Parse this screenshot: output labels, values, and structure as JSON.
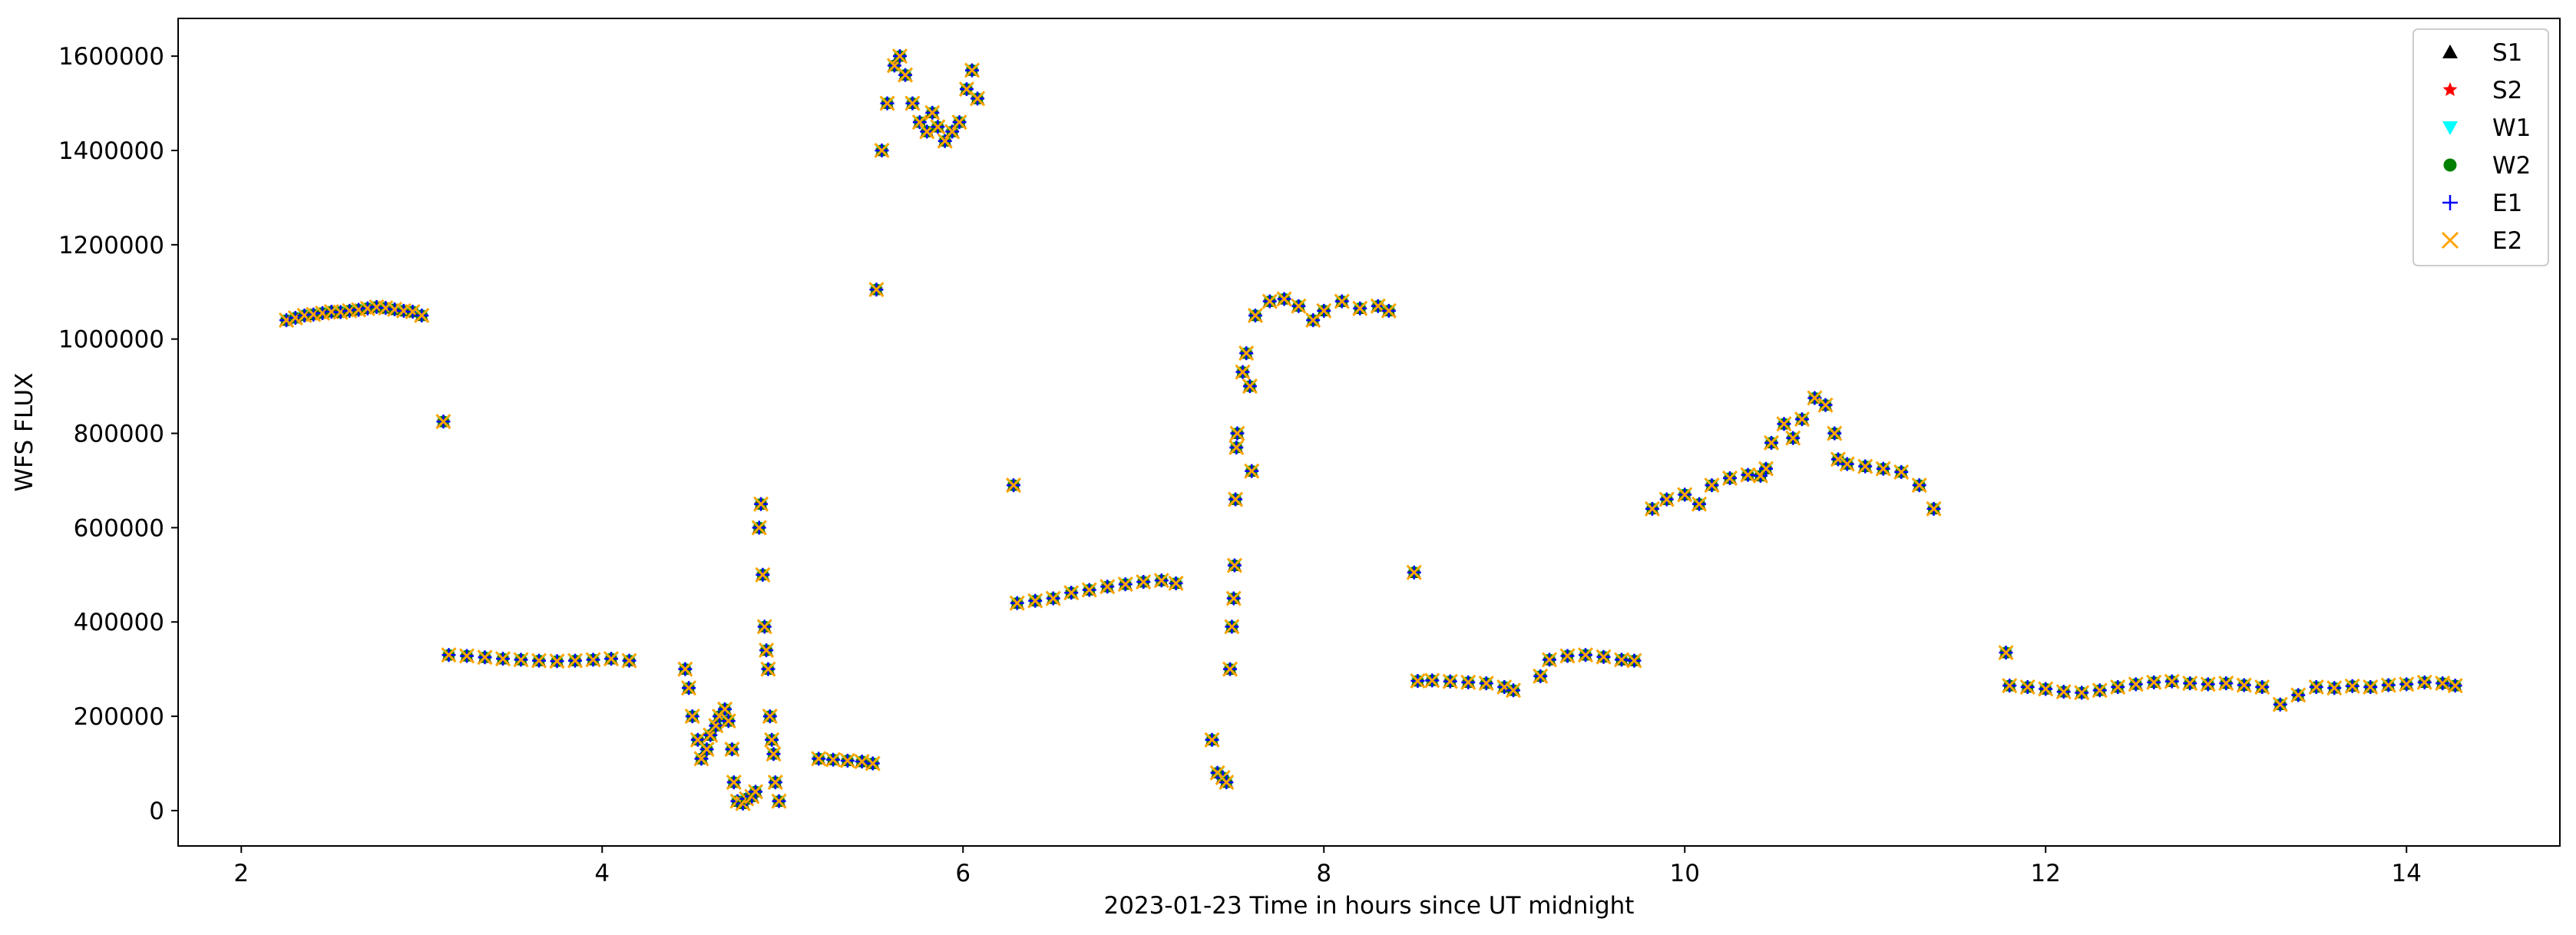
{
  "chart_data": {
    "type": "scatter",
    "title": "",
    "xlabel": "2023-01-23  Time in hours since UT midnight",
    "ylabel": "WFS FLUX",
    "xlim": [
      1.65,
      14.85
    ],
    "ylim": [
      -75000,
      1680000
    ],
    "xticks": [
      2,
      4,
      6,
      8,
      10,
      12,
      14
    ],
    "yticks": [
      0,
      200000,
      400000,
      600000,
      800000,
      1000000,
      1200000,
      1400000,
      1600000
    ],
    "grid": false,
    "legend_position": "top-right",
    "series": [
      {
        "name": "S1",
        "color": "#000000",
        "marker": "triangle-up",
        "symbol": "▲"
      },
      {
        "name": "S2",
        "color": "#ff0000",
        "marker": "star",
        "symbol": "★"
      },
      {
        "name": "W1",
        "color": "#00ffff",
        "marker": "triangle-down",
        "symbol": "▼"
      },
      {
        "name": "W2",
        "color": "#008000",
        "marker": "circle",
        "symbol": "●"
      },
      {
        "name": "E1",
        "color": "#0000ff",
        "marker": "plus",
        "symbol": "+"
      },
      {
        "name": "E2",
        "color": "#ffa500",
        "marker": "x",
        "symbol": "×"
      }
    ],
    "note_series_overlap": "All six series overlap almost exactly; points below are shared by every series.",
    "points": [
      [
        2.25,
        1040000
      ],
      [
        2.3,
        1045000
      ],
      [
        2.35,
        1050000
      ],
      [
        2.4,
        1052000
      ],
      [
        2.45,
        1055000
      ],
      [
        2.5,
        1058000
      ],
      [
        2.55,
        1057000
      ],
      [
        2.6,
        1060000
      ],
      [
        2.65,
        1062000
      ],
      [
        2.7,
        1065000
      ],
      [
        2.75,
        1068000
      ],
      [
        2.8,
        1066000
      ],
      [
        2.85,
        1063000
      ],
      [
        2.9,
        1060000
      ],
      [
        2.95,
        1058000
      ],
      [
        3.0,
        1050000
      ],
      [
        3.12,
        825000
      ],
      [
        3.15,
        330000
      ],
      [
        3.25,
        328000
      ],
      [
        3.35,
        325000
      ],
      [
        3.45,
        322000
      ],
      [
        3.55,
        320000
      ],
      [
        3.65,
        318000
      ],
      [
        3.75,
        317000
      ],
      [
        3.85,
        318000
      ],
      [
        3.95,
        320000
      ],
      [
        4.05,
        322000
      ],
      [
        4.15,
        318000
      ],
      [
        4.46,
        300000
      ],
      [
        4.48,
        260000
      ],
      [
        4.5,
        200000
      ],
      [
        4.53,
        150000
      ],
      [
        4.55,
        110000
      ],
      [
        4.58,
        130000
      ],
      [
        4.6,
        160000
      ],
      [
        4.63,
        180000
      ],
      [
        4.65,
        200000
      ],
      [
        4.68,
        215000
      ],
      [
        4.7,
        190000
      ],
      [
        4.72,
        130000
      ],
      [
        4.73,
        60000
      ],
      [
        4.75,
        20000
      ],
      [
        4.78,
        15000
      ],
      [
        4.8,
        25000
      ],
      [
        4.83,
        30000
      ],
      [
        4.85,
        40000
      ],
      [
        4.87,
        600000
      ],
      [
        4.88,
        650000
      ],
      [
        4.89,
        500000
      ],
      [
        4.9,
        390000
      ],
      [
        4.91,
        340000
      ],
      [
        4.92,
        300000
      ],
      [
        4.93,
        200000
      ],
      [
        4.94,
        150000
      ],
      [
        4.95,
        120000
      ],
      [
        4.96,
        60000
      ],
      [
        4.98,
        20000
      ],
      [
        5.2,
        110000
      ],
      [
        5.28,
        108000
      ],
      [
        5.36,
        106000
      ],
      [
        5.44,
        104000
      ],
      [
        5.5,
        100000
      ],
      [
        5.52,
        1105000
      ],
      [
        5.55,
        1400000
      ],
      [
        5.58,
        1500000
      ],
      [
        5.62,
        1580000
      ],
      [
        5.65,
        1600000
      ],
      [
        5.68,
        1560000
      ],
      [
        5.72,
        1500000
      ],
      [
        5.76,
        1460000
      ],
      [
        5.8,
        1440000
      ],
      [
        5.83,
        1480000
      ],
      [
        5.86,
        1450000
      ],
      [
        5.9,
        1420000
      ],
      [
        5.94,
        1440000
      ],
      [
        5.98,
        1460000
      ],
      [
        6.02,
        1530000
      ],
      [
        6.05,
        1570000
      ],
      [
        6.08,
        1510000
      ],
      [
        6.28,
        690000
      ],
      [
        6.3,
        440000
      ],
      [
        6.4,
        445000
      ],
      [
        6.5,
        450000
      ],
      [
        6.6,
        462000
      ],
      [
        6.7,
        468000
      ],
      [
        6.8,
        475000
      ],
      [
        6.9,
        480000
      ],
      [
        7.0,
        485000
      ],
      [
        7.1,
        488000
      ],
      [
        7.18,
        482000
      ],
      [
        7.38,
        150000
      ],
      [
        7.41,
        80000
      ],
      [
        7.44,
        70000
      ],
      [
        7.46,
        60000
      ],
      [
        7.48,
        300000
      ],
      [
        7.49,
        390000
      ],
      [
        7.5,
        450000
      ],
      [
        7.505,
        520000
      ],
      [
        7.51,
        660000
      ],
      [
        7.515,
        770000
      ],
      [
        7.52,
        800000
      ],
      [
        7.55,
        930000
      ],
      [
        7.57,
        970000
      ],
      [
        7.59,
        900000
      ],
      [
        7.6,
        720000
      ],
      [
        7.62,
        1050000
      ],
      [
        7.7,
        1080000
      ],
      [
        7.78,
        1085000
      ],
      [
        7.86,
        1070000
      ],
      [
        7.94,
        1040000
      ],
      [
        8.0,
        1060000
      ],
      [
        8.1,
        1080000
      ],
      [
        8.2,
        1065000
      ],
      [
        8.3,
        1070000
      ],
      [
        8.36,
        1060000
      ],
      [
        8.5,
        505000
      ],
      [
        8.52,
        275000
      ],
      [
        8.6,
        276000
      ],
      [
        8.7,
        274000
      ],
      [
        8.8,
        272000
      ],
      [
        8.9,
        270000
      ],
      [
        9.0,
        262000
      ],
      [
        9.05,
        255000
      ],
      [
        9.2,
        285000
      ],
      [
        9.25,
        320000
      ],
      [
        9.35,
        328000
      ],
      [
        9.45,
        330000
      ],
      [
        9.55,
        326000
      ],
      [
        9.65,
        320000
      ],
      [
        9.72,
        318000
      ],
      [
        9.82,
        640000
      ],
      [
        9.9,
        660000
      ],
      [
        10.0,
        670000
      ],
      [
        10.08,
        650000
      ],
      [
        10.15,
        690000
      ],
      [
        10.25,
        705000
      ],
      [
        10.35,
        712000
      ],
      [
        10.42,
        710000
      ],
      [
        10.45,
        725000
      ],
      [
        10.48,
        780000
      ],
      [
        10.55,
        820000
      ],
      [
        10.6,
        790000
      ],
      [
        10.65,
        830000
      ],
      [
        10.72,
        875000
      ],
      [
        10.78,
        860000
      ],
      [
        10.83,
        800000
      ],
      [
        10.85,
        745000
      ],
      [
        10.9,
        735000
      ],
      [
        11.0,
        730000
      ],
      [
        11.1,
        725000
      ],
      [
        11.2,
        718000
      ],
      [
        11.3,
        690000
      ],
      [
        11.38,
        640000
      ],
      [
        11.78,
        335000
      ],
      [
        11.8,
        265000
      ],
      [
        11.9,
        262000
      ],
      [
        12.0,
        258000
      ],
      [
        12.1,
        252000
      ],
      [
        12.2,
        250000
      ],
      [
        12.3,
        255000
      ],
      [
        12.4,
        262000
      ],
      [
        12.5,
        268000
      ],
      [
        12.6,
        272000
      ],
      [
        12.7,
        274000
      ],
      [
        12.8,
        270000
      ],
      [
        12.9,
        268000
      ],
      [
        13.0,
        270000
      ],
      [
        13.1,
        266000
      ],
      [
        13.2,
        262000
      ],
      [
        13.3,
        225000
      ],
      [
        13.4,
        245000
      ],
      [
        13.5,
        262000
      ],
      [
        13.6,
        260000
      ],
      [
        13.7,
        264000
      ],
      [
        13.8,
        262000
      ],
      [
        13.9,
        266000
      ],
      [
        14.0,
        268000
      ],
      [
        14.1,
        272000
      ],
      [
        14.2,
        270000
      ],
      [
        14.27,
        265000
      ]
    ]
  }
}
